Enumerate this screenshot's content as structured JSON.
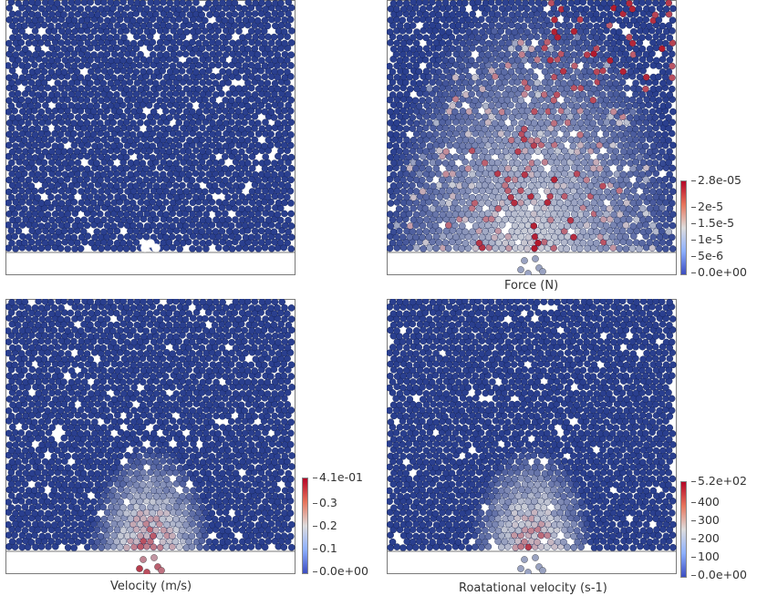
{
  "panels": [
    {
      "id": "top-left",
      "caption": "",
      "colorbar": null
    },
    {
      "id": "top-right",
      "caption": "Force (N)",
      "colorbar": {
        "ticks": [
          "2.8e-05",
          "2e-5",
          "1.5e-5",
          "1e-5",
          "5e-6",
          "0.0e+00"
        ]
      }
    },
    {
      "id": "bottom-left",
      "caption": "Velocity (m/s)",
      "colorbar": {
        "ticks": [
          "4.1e-01",
          "0.3",
          "0.2",
          "0.1",
          "0.0e+00"
        ]
      }
    },
    {
      "id": "bottom-right",
      "caption": "Roatational velocity (s-1)",
      "colorbar": {
        "ticks": [
          "5.2e+02",
          "400",
          "300",
          "200",
          "100",
          "0.0e+00"
        ]
      }
    }
  ],
  "colors": {
    "particle_low": "#2a3f8f",
    "particle_mid": "#c9ccd6",
    "particle_high": "#b2182b",
    "frame": "#7a7a7a",
    "colormap": [
      "#b40426",
      "#e7745b",
      "#dddcdc",
      "#8db0fe",
      "#3b4cc0"
    ]
  }
}
